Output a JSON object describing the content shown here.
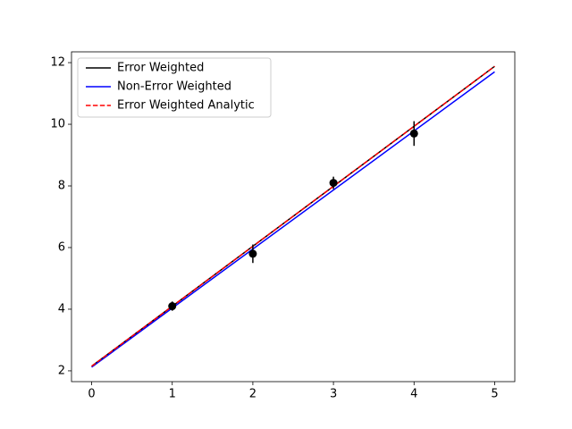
{
  "chart_data": {
    "type": "line",
    "x": [
      0,
      5
    ],
    "series": [
      {
        "name": "Error Weighted",
        "color": "#000000",
        "values": [
          2.15,
          11.88
        ],
        "dashed": false
      },
      {
        "name": "Non-Error Weighted",
        "color": "#0000ff",
        "values": [
          2.12,
          11.7
        ],
        "dashed": false
      },
      {
        "name": "Error Weighted Analytic",
        "color": "#ff0000",
        "values": [
          2.15,
          11.88
        ],
        "dashed": true
      }
    ],
    "points": {
      "x": [
        1,
        2,
        3,
        4
      ],
      "values": [
        4.1,
        5.8,
        8.1,
        9.7
      ],
      "errors": [
        0.15,
        0.3,
        0.2,
        0.4
      ],
      "color": "#000000"
    },
    "xlim": [
      -0.25,
      5.25
    ],
    "xticks": [
      0,
      1,
      2,
      3,
      4,
      5
    ],
    "ylim": [
      1.65,
      12.35
    ],
    "yticks": [
      2,
      4,
      6,
      8,
      10,
      12
    ],
    "legend": "upper left"
  }
}
